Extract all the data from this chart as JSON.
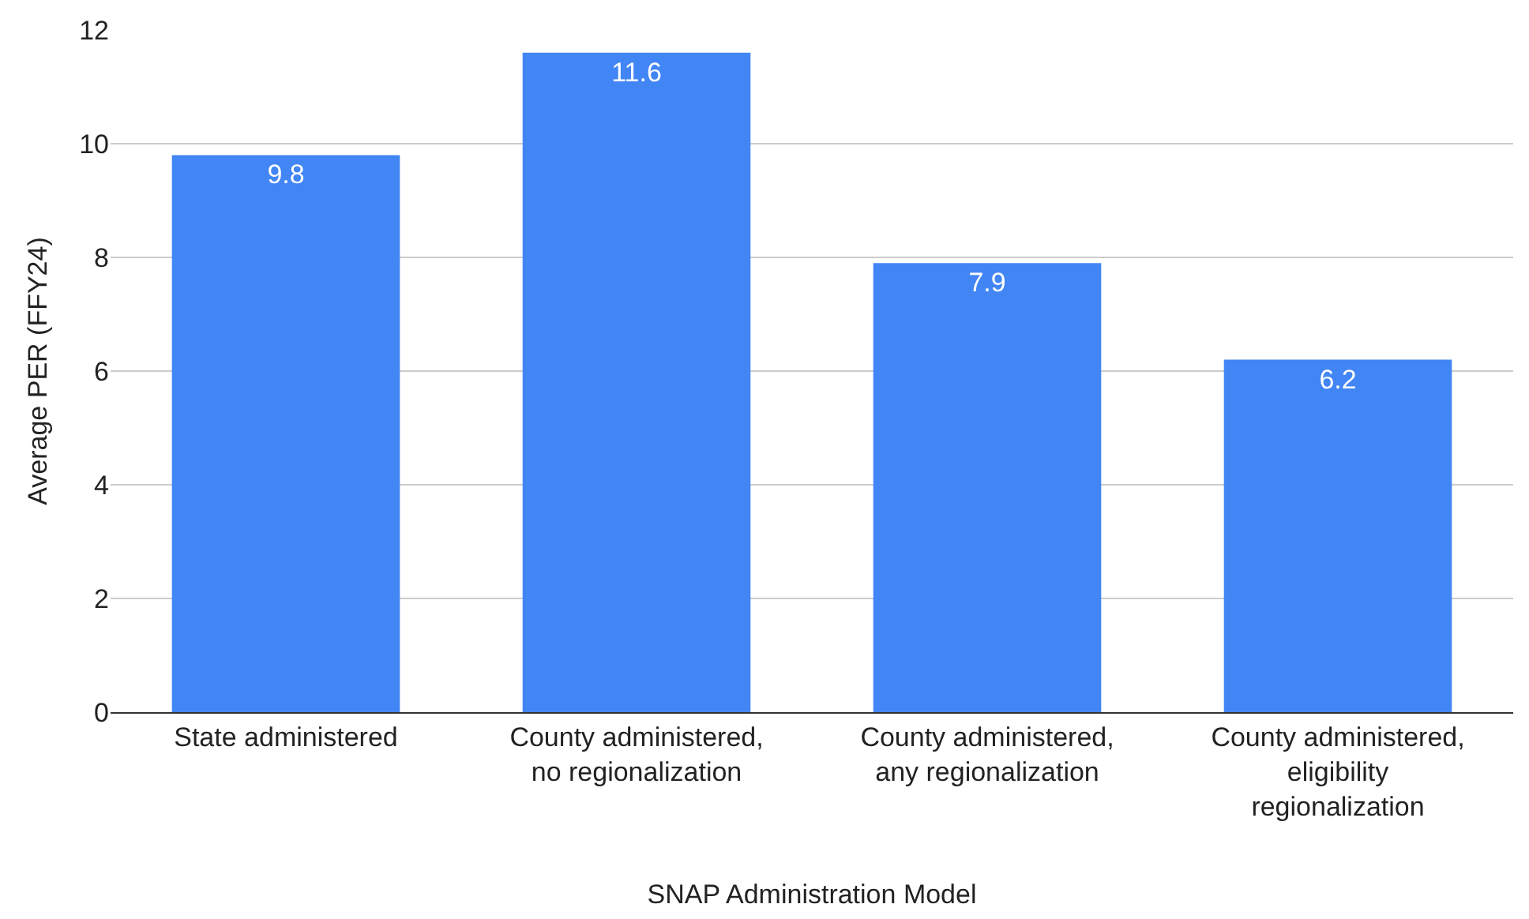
{
  "chart_data": {
    "type": "bar",
    "categories": [
      "State administered",
      "County administered, no regionalization",
      "County administered, any regionalization",
      "County administered, eligibility regionalization"
    ],
    "values": [
      9.8,
      11.6,
      7.9,
      6.2
    ],
    "color": "#4285f4",
    "xlabel": "SNAP Administration Model",
    "ylabel": "Average PER (FFY24)",
    "ylim": [
      0,
      12
    ],
    "yticks": [
      0,
      2,
      4,
      6,
      8,
      10,
      12
    ],
    "grid": "y",
    "data_labels": true
  }
}
